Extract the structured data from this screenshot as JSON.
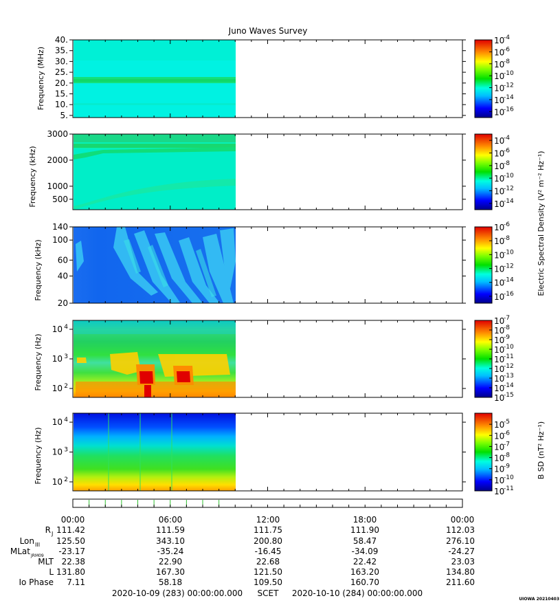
{
  "title": "Juno Waves Survey",
  "panels": [
    {
      "id": "p1",
      "ylabel": "Frequency (MHz)",
      "yscale": "linear",
      "ylim": [
        4,
        40
      ],
      "yticks": [
        {
          "v": 40,
          "label": "40."
        },
        {
          "v": 35,
          "label": "35."
        },
        {
          "v": 30,
          "label": "30."
        },
        {
          "v": 25,
          "label": "25."
        },
        {
          "v": 20,
          "label": "20."
        },
        {
          "v": 15,
          "label": "15."
        },
        {
          "v": 10,
          "label": "10."
        },
        {
          "v": 5,
          "label": "5."
        }
      ],
      "colorbar": {
        "min_exp": -17,
        "max_exp": -4,
        "labels": [
          "-4",
          "-6",
          "-8",
          "-10",
          "-12",
          "-14",
          "-16"
        ]
      }
    },
    {
      "id": "p2",
      "ylabel": "Frequency (kHz)",
      "yscale": "linear-mixed",
      "ylim": [
        100,
        3000
      ],
      "yticks": [
        {
          "v": 3000,
          "label": "3000"
        },
        {
          "v": 2000,
          "label": "2000"
        },
        {
          "v": 1000,
          "label": "1000"
        },
        {
          "v": 500,
          "label": "500"
        }
      ],
      "colorbar": {
        "min_exp": -15,
        "max_exp": -3,
        "labels": [
          "-4",
          "-6",
          "-8",
          "-10",
          "-12",
          "-14"
        ]
      }
    },
    {
      "id": "p3",
      "ylabel": "Frequency (kHz)",
      "yscale": "log",
      "ylim": [
        20,
        140
      ],
      "yticks": [
        {
          "v": 140,
          "label": "140"
        },
        {
          "v": 100,
          "label": "100"
        },
        {
          "v": 60,
          "label": "60"
        },
        {
          "v": 40,
          "label": "40"
        },
        {
          "v": 20,
          "label": "20"
        }
      ],
      "colorbar": {
        "min_exp": -17,
        "max_exp": -6,
        "labels": [
          "-6",
          "-8",
          "-10",
          "-12",
          "-14",
          "-16"
        ]
      }
    },
    {
      "id": "p4",
      "ylabel": "Frequency (Hz)",
      "yscale": "log",
      "ylim": [
        50,
        20000
      ],
      "yticks": [
        {
          "v": 10000,
          "label": "10",
          "exp": "4"
        },
        {
          "v": 1000,
          "label": "10",
          "exp": "3"
        },
        {
          "v": 100,
          "label": "10",
          "exp": "2"
        }
      ],
      "colorbar": {
        "min_exp": -15,
        "max_exp": -7,
        "labels": [
          "-7",
          "-8",
          "-9",
          "-10",
          "-11",
          "-12",
          "-13",
          "-14",
          "-15"
        ]
      }
    },
    {
      "id": "p5",
      "ylabel": "Frequency (Hz)",
      "yscale": "log",
      "ylim": [
        50,
        20000
      ],
      "yticks": [
        {
          "v": 10000,
          "label": "10",
          "exp": "4"
        },
        {
          "v": 1000,
          "label": "10",
          "exp": "3"
        },
        {
          "v": 100,
          "label": "10",
          "exp": "2"
        }
      ],
      "colorbar": {
        "min_exp": -11,
        "max_exp": -4,
        "labels": [
          "-5",
          "-6",
          "-7",
          "-8",
          "-9",
          "-10",
          "-11"
        ]
      }
    }
  ],
  "colorbar_label_e": "Electric Spectral Density (V² m⁻² Hz⁻¹)",
  "colorbar_label_b": "B SD (nT² Hz⁻¹)",
  "colorbar_base": "10",
  "chart_data": {
    "type": "heatmap",
    "x_axis": {
      "ticks": [
        "00:00",
        "06:00",
        "12:00",
        "18:00",
        "00:00"
      ],
      "range_hours": [
        0,
        24
      ],
      "data_coverage_hours": [
        0,
        10
      ]
    },
    "ephemeris": {
      "rows": [
        {
          "label": "R",
          "sub": "J",
          "values": [
            "111.42",
            "111.59",
            "111.75",
            "111.90",
            "112.03"
          ]
        },
        {
          "label": "Lon",
          "sub": "III",
          "values": [
            "125.50",
            "343.10",
            "200.80",
            "58.47",
            "276.10"
          ]
        },
        {
          "label": "MLat",
          "sub": "JRM09",
          "values": [
            "-23.17",
            "-35.24",
            "-16.45",
            "-34.09",
            "-24.27"
          ]
        },
        {
          "label": "MLT",
          "sub": "",
          "values": [
            "22.38",
            "22.90",
            "22.68",
            "22.42",
            "23.03"
          ]
        },
        {
          "label": "L",
          "sub": "",
          "values": [
            "131.80",
            "167.30",
            "121.50",
            "163.20",
            "134.80"
          ]
        },
        {
          "label": "Io Phase",
          "sub": "",
          "values": [
            "7.11",
            "58.18",
            "109.50",
            "160.70",
            "211.60"
          ]
        }
      ]
    }
  },
  "footer": {
    "start": "2020-10-09 (283) 00:00:00.000",
    "scet": "SCET",
    "end": "2020-10-10 (284) 00:00:00.000"
  },
  "stamp": "UIOWA 20210403"
}
